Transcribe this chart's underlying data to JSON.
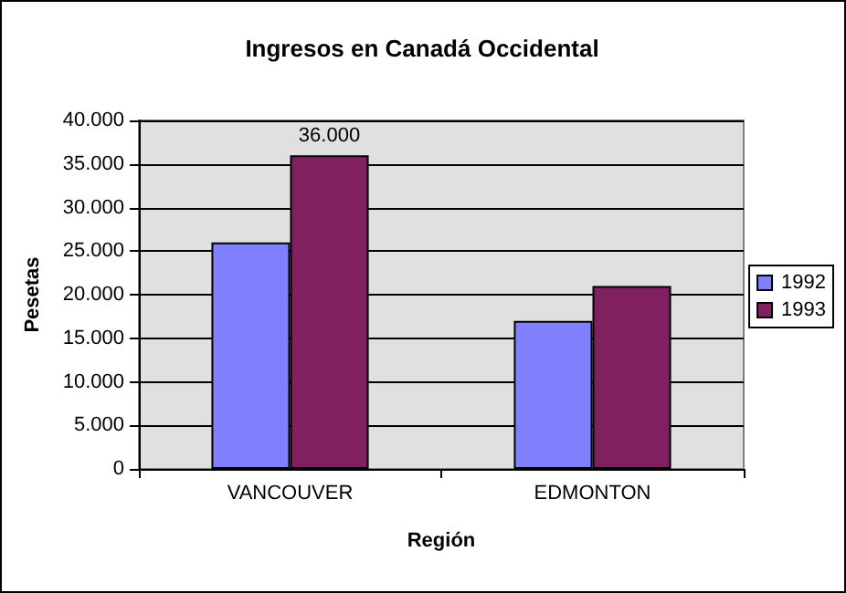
{
  "chart_data": {
    "type": "bar",
    "title": "Ingresos en Canadá Occidental",
    "xlabel": "Región",
    "ylabel": "Pesetas",
    "categories": [
      "VANCOUVER",
      "EDMONTON"
    ],
    "series": [
      {
        "name": "1992",
        "color": "#8080ff",
        "values": [
          26000,
          17000
        ]
      },
      {
        "name": "1993",
        "color": "#802060",
        "values": [
          36000,
          21000
        ],
        "value_labels": [
          "36.000",
          null
        ]
      }
    ],
    "ylim": [
      0,
      40000
    ],
    "yticks": [
      {
        "value": 0,
        "label": "0"
      },
      {
        "value": 5000,
        "label": "5.000"
      },
      {
        "value": 10000,
        "label": "10.000"
      },
      {
        "value": 15000,
        "label": "15.000"
      },
      {
        "value": 20000,
        "label": "20.000"
      },
      {
        "value": 25000,
        "label": "25.000"
      },
      {
        "value": 30000,
        "label": "30.000"
      },
      {
        "value": 35000,
        "label": "35.000"
      },
      {
        "value": 40000,
        "label": "40.000"
      }
    ],
    "grid": "y",
    "legend": "right"
  }
}
